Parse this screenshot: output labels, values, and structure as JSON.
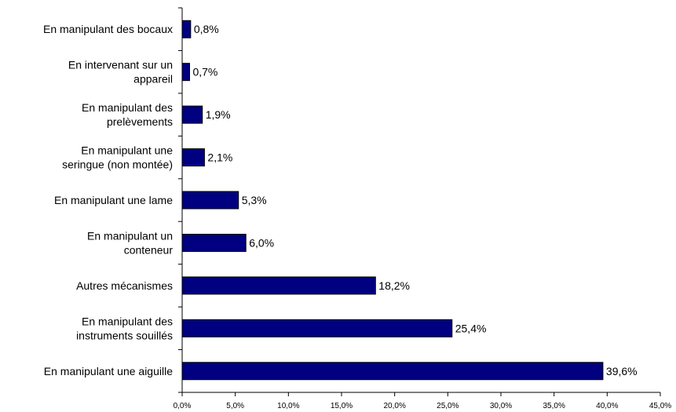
{
  "chart_data": {
    "type": "bar",
    "orientation": "horizontal",
    "categories": [
      [
        "En manipulant des bocaux"
      ],
      [
        "En intervenant sur un",
        "appareil"
      ],
      [
        "En manipulant des",
        "prelèvements"
      ],
      [
        "En manipulant une",
        "seringue (non montée)"
      ],
      [
        "En manipulant une lame"
      ],
      [
        "En manipulant un",
        "conteneur"
      ],
      [
        "Autres mécanismes"
      ],
      [
        "En manipulant des",
        "instruments souillés"
      ],
      [
        "En manipulant une aiguille"
      ]
    ],
    "values": [
      0.8,
      0.7,
      1.9,
      2.1,
      5.3,
      6.0,
      18.2,
      25.4,
      39.6
    ],
    "value_labels": [
      "0,8%",
      "0,7%",
      "1,9%",
      "2,1%",
      "5,3%",
      "6,0%",
      "18,2%",
      "25,4%",
      "39,6%"
    ],
    "xlim": [
      0,
      45
    ],
    "xticks": [
      0,
      5,
      10,
      15,
      20,
      25,
      30,
      35,
      40,
      45
    ],
    "xtick_labels": [
      "0,0%",
      "5,0%",
      "10,0%",
      "15,0%",
      "20,0%",
      "25,0%",
      "30,0%",
      "35,0%",
      "40,0%",
      "45,0%"
    ],
    "bar_color": "#000080",
    "grid": false,
    "title": "",
    "xlabel": "",
    "ylabel": ""
  }
}
